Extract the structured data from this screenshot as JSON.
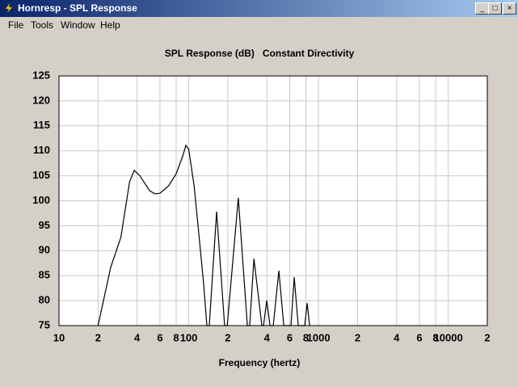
{
  "window": {
    "title": "Hornresp - SPL Response"
  },
  "menu": [
    "File",
    "Tools",
    "Window",
    "Help"
  ],
  "chart_data": {
    "type": "line",
    "title": "SPL Response (dB)   Constant Directivity",
    "xlabel": "Frequency (hertz)",
    "log_x": true,
    "grid": true,
    "color": "#000000",
    "xlim": [
      10,
      20000
    ],
    "xticks": [
      10,
      {
        "value": 20,
        "label": "2"
      },
      {
        "value": 40,
        "label": "4"
      },
      {
        "value": 60,
        "label": "6"
      },
      {
        "value": 80,
        "label": "8"
      },
      100,
      {
        "value": 200,
        "label": "2"
      },
      {
        "value": 400,
        "label": "4"
      },
      {
        "value": 600,
        "label": "6"
      },
      {
        "value": 800,
        "label": "8"
      },
      1000,
      {
        "value": 2000,
        "label": "2"
      },
      {
        "value": 4000,
        "label": "4"
      },
      {
        "value": 6000,
        "label": "6"
      },
      {
        "value": 8000,
        "label": "8"
      },
      10000,
      {
        "value": 20000,
        "label": "2"
      }
    ],
    "ylim": [
      75,
      125
    ],
    "yticks": [
      75,
      80,
      85,
      90,
      95,
      100,
      105,
      110,
      115,
      120,
      125
    ],
    "x": [
      20,
      25,
      30,
      35,
      38,
      42,
      50,
      55,
      60,
      70,
      80,
      90,
      95,
      100,
      110,
      120,
      130,
      138,
      144,
      164,
      189,
      198,
      241,
      283,
      295,
      318,
      366,
      377,
      399,
      423,
      448,
      495,
      540,
      614,
      650,
      698,
      783,
      818,
      854
    ],
    "values": [
      75,
      86.6,
      92.7,
      103.8,
      106.1,
      105,
      102,
      101.4,
      101.5,
      103,
      105.4,
      109,
      111.1,
      110.3,
      103,
      93,
      83.6,
      75,
      75,
      97.8,
      75,
      75,
      100.6,
      75,
      75,
      88.4,
      75,
      75,
      80,
      75,
      75,
      86,
      75,
      75,
      84.7,
      75,
      75,
      79.5,
      75
    ]
  }
}
